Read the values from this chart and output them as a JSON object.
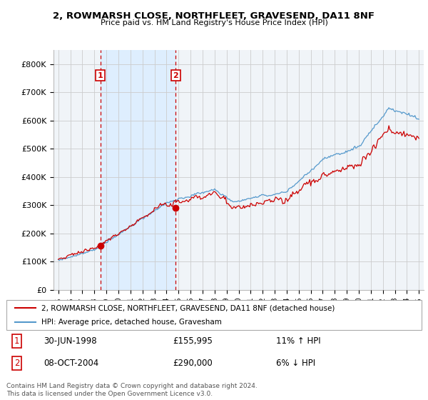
{
  "title": "2, ROWMARSH CLOSE, NORTHFLEET, GRAVESEND, DA11 8NF",
  "subtitle": "Price paid vs. HM Land Registry's House Price Index (HPI)",
  "red_line_label": "2, ROWMARSH CLOSE, NORTHFLEET, GRAVESEND, DA11 8NF (detached house)",
  "blue_line_label": "HPI: Average price, detached house, Gravesham",
  "transaction1_date": "30-JUN-1998",
  "transaction1_price": "£155,995",
  "transaction1_hpi": "11% ↑ HPI",
  "transaction2_date": "08-OCT-2004",
  "transaction2_price": "£290,000",
  "transaction2_hpi": "6% ↓ HPI",
  "footnote": "Contains HM Land Registry data © Crown copyright and database right 2024.\nThis data is licensed under the Open Government Licence v3.0.",
  "marker1_year": 1998.5,
  "marker1_price": 155995,
  "marker2_year": 2004.77,
  "marker2_price": 290000,
  "ylabel_ticks": [
    "£0",
    "£100K",
    "£200K",
    "£300K",
    "£400K",
    "£500K",
    "£600K",
    "£700K",
    "£800K"
  ],
  "ytick_vals": [
    0,
    100000,
    200000,
    300000,
    400000,
    500000,
    600000,
    700000,
    800000
  ],
  "background_color": "#ffffff",
  "plot_bg_color": "#f0f4f8",
  "red_color": "#cc0000",
  "blue_color": "#5599cc",
  "shade_color": "#ddeeff",
  "grid_color": "#cccccc",
  "vline_color": "#cc0000"
}
